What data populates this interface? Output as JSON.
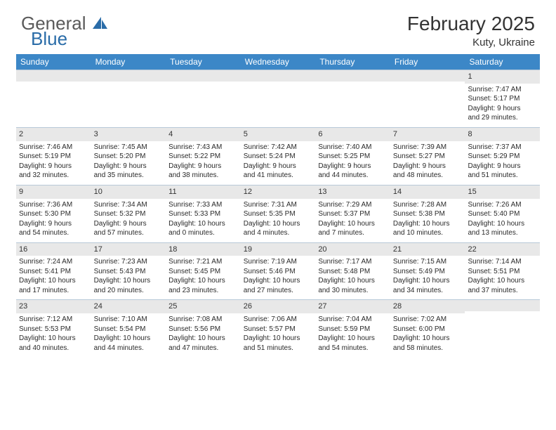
{
  "logo": {
    "text1": "General",
    "text2": "Blue",
    "color_gray": "#5a5a5a",
    "color_blue": "#2a6ca8"
  },
  "title": "February 2025",
  "location": "Kuty, Ukraine",
  "header_bg": "#3c87c7",
  "daynum_bg": "#e8e8e8",
  "border_color": "#b8c9d8",
  "text_color": "#2a2a2a",
  "day_names": [
    "Sunday",
    "Monday",
    "Tuesday",
    "Wednesday",
    "Thursday",
    "Friday",
    "Saturday"
  ],
  "weeks": [
    [
      {
        "n": ""
      },
      {
        "n": ""
      },
      {
        "n": ""
      },
      {
        "n": ""
      },
      {
        "n": ""
      },
      {
        "n": ""
      },
      {
        "n": "1",
        "sr": "Sunrise: 7:47 AM",
        "ss": "Sunset: 5:17 PM",
        "d1": "Daylight: 9 hours",
        "d2": "and 29 minutes."
      }
    ],
    [
      {
        "n": "2",
        "sr": "Sunrise: 7:46 AM",
        "ss": "Sunset: 5:19 PM",
        "d1": "Daylight: 9 hours",
        "d2": "and 32 minutes."
      },
      {
        "n": "3",
        "sr": "Sunrise: 7:45 AM",
        "ss": "Sunset: 5:20 PM",
        "d1": "Daylight: 9 hours",
        "d2": "and 35 minutes."
      },
      {
        "n": "4",
        "sr": "Sunrise: 7:43 AM",
        "ss": "Sunset: 5:22 PM",
        "d1": "Daylight: 9 hours",
        "d2": "and 38 minutes."
      },
      {
        "n": "5",
        "sr": "Sunrise: 7:42 AM",
        "ss": "Sunset: 5:24 PM",
        "d1": "Daylight: 9 hours",
        "d2": "and 41 minutes."
      },
      {
        "n": "6",
        "sr": "Sunrise: 7:40 AM",
        "ss": "Sunset: 5:25 PM",
        "d1": "Daylight: 9 hours",
        "d2": "and 44 minutes."
      },
      {
        "n": "7",
        "sr": "Sunrise: 7:39 AM",
        "ss": "Sunset: 5:27 PM",
        "d1": "Daylight: 9 hours",
        "d2": "and 48 minutes."
      },
      {
        "n": "8",
        "sr": "Sunrise: 7:37 AM",
        "ss": "Sunset: 5:29 PM",
        "d1": "Daylight: 9 hours",
        "d2": "and 51 minutes."
      }
    ],
    [
      {
        "n": "9",
        "sr": "Sunrise: 7:36 AM",
        "ss": "Sunset: 5:30 PM",
        "d1": "Daylight: 9 hours",
        "d2": "and 54 minutes."
      },
      {
        "n": "10",
        "sr": "Sunrise: 7:34 AM",
        "ss": "Sunset: 5:32 PM",
        "d1": "Daylight: 9 hours",
        "d2": "and 57 minutes."
      },
      {
        "n": "11",
        "sr": "Sunrise: 7:33 AM",
        "ss": "Sunset: 5:33 PM",
        "d1": "Daylight: 10 hours",
        "d2": "and 0 minutes."
      },
      {
        "n": "12",
        "sr": "Sunrise: 7:31 AM",
        "ss": "Sunset: 5:35 PM",
        "d1": "Daylight: 10 hours",
        "d2": "and 4 minutes."
      },
      {
        "n": "13",
        "sr": "Sunrise: 7:29 AM",
        "ss": "Sunset: 5:37 PM",
        "d1": "Daylight: 10 hours",
        "d2": "and 7 minutes."
      },
      {
        "n": "14",
        "sr": "Sunrise: 7:28 AM",
        "ss": "Sunset: 5:38 PM",
        "d1": "Daylight: 10 hours",
        "d2": "and 10 minutes."
      },
      {
        "n": "15",
        "sr": "Sunrise: 7:26 AM",
        "ss": "Sunset: 5:40 PM",
        "d1": "Daylight: 10 hours",
        "d2": "and 13 minutes."
      }
    ],
    [
      {
        "n": "16",
        "sr": "Sunrise: 7:24 AM",
        "ss": "Sunset: 5:41 PM",
        "d1": "Daylight: 10 hours",
        "d2": "and 17 minutes."
      },
      {
        "n": "17",
        "sr": "Sunrise: 7:23 AM",
        "ss": "Sunset: 5:43 PM",
        "d1": "Daylight: 10 hours",
        "d2": "and 20 minutes."
      },
      {
        "n": "18",
        "sr": "Sunrise: 7:21 AM",
        "ss": "Sunset: 5:45 PM",
        "d1": "Daylight: 10 hours",
        "d2": "and 23 minutes."
      },
      {
        "n": "19",
        "sr": "Sunrise: 7:19 AM",
        "ss": "Sunset: 5:46 PM",
        "d1": "Daylight: 10 hours",
        "d2": "and 27 minutes."
      },
      {
        "n": "20",
        "sr": "Sunrise: 7:17 AM",
        "ss": "Sunset: 5:48 PM",
        "d1": "Daylight: 10 hours",
        "d2": "and 30 minutes."
      },
      {
        "n": "21",
        "sr": "Sunrise: 7:15 AM",
        "ss": "Sunset: 5:49 PM",
        "d1": "Daylight: 10 hours",
        "d2": "and 34 minutes."
      },
      {
        "n": "22",
        "sr": "Sunrise: 7:14 AM",
        "ss": "Sunset: 5:51 PM",
        "d1": "Daylight: 10 hours",
        "d2": "and 37 minutes."
      }
    ],
    [
      {
        "n": "23",
        "sr": "Sunrise: 7:12 AM",
        "ss": "Sunset: 5:53 PM",
        "d1": "Daylight: 10 hours",
        "d2": "and 40 minutes."
      },
      {
        "n": "24",
        "sr": "Sunrise: 7:10 AM",
        "ss": "Sunset: 5:54 PM",
        "d1": "Daylight: 10 hours",
        "d2": "and 44 minutes."
      },
      {
        "n": "25",
        "sr": "Sunrise: 7:08 AM",
        "ss": "Sunset: 5:56 PM",
        "d1": "Daylight: 10 hours",
        "d2": "and 47 minutes."
      },
      {
        "n": "26",
        "sr": "Sunrise: 7:06 AM",
        "ss": "Sunset: 5:57 PM",
        "d1": "Daylight: 10 hours",
        "d2": "and 51 minutes."
      },
      {
        "n": "27",
        "sr": "Sunrise: 7:04 AM",
        "ss": "Sunset: 5:59 PM",
        "d1": "Daylight: 10 hours",
        "d2": "and 54 minutes."
      },
      {
        "n": "28",
        "sr": "Sunrise: 7:02 AM",
        "ss": "Sunset: 6:00 PM",
        "d1": "Daylight: 10 hours",
        "d2": "and 58 minutes."
      },
      {
        "n": ""
      }
    ]
  ]
}
